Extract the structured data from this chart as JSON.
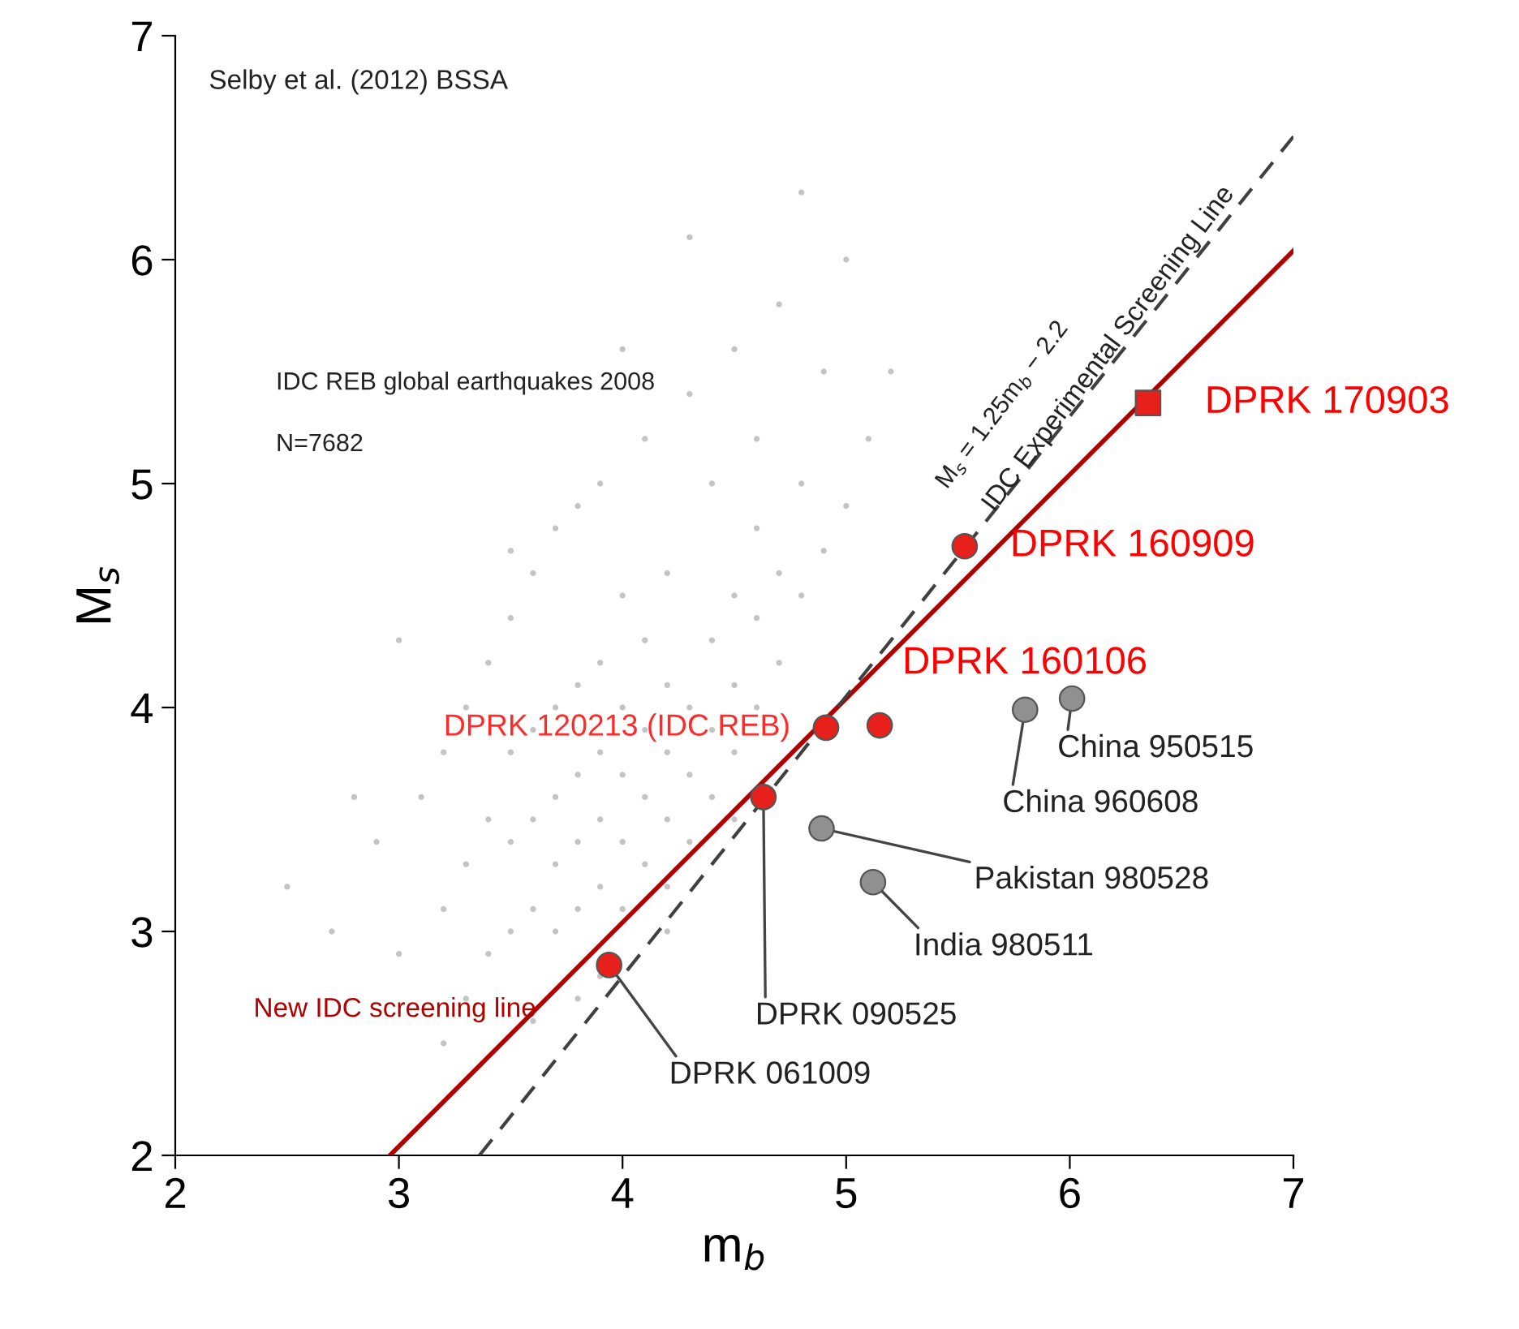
{
  "chart_data": {
    "type": "scatter",
    "xlabel": "m$_{b}$",
    "ylabel": "M$_{s}$",
    "xlim": [
      2,
      7
    ],
    "ylim": [
      2,
      7
    ],
    "xticks": [
      2,
      3,
      4,
      5,
      6,
      7
    ],
    "yticks": [
      2,
      3,
      4,
      5,
      6,
      7
    ],
    "grid": false,
    "series": [
      {
        "color": "#c4c4c4",
        "marker": "circle",
        "x": [
          2.5,
          2.7,
          2.9,
          3.0,
          3.1,
          3.2,
          3.2,
          3.3,
          3.3,
          3.4,
          3.4,
          3.4,
          3.5,
          3.5,
          3.5,
          3.5,
          3.6,
          3.6,
          3.6,
          3.6,
          3.7,
          3.7,
          3.7,
          3.7,
          3.7,
          3.8,
          3.8,
          3.8,
          3.8,
          3.8,
          3.9,
          3.9,
          3.9,
          3.9,
          3.9,
          4.0,
          4.0,
          4.0,
          4.0,
          4.0,
          4.1,
          4.1,
          4.1,
          4.1,
          4.1,
          4.2,
          4.2,
          4.2,
          4.2,
          4.2,
          4.3,
          4.3,
          4.3,
          4.3,
          4.4,
          4.4,
          4.4,
          4.4,
          4.5,
          4.5,
          4.5,
          4.5,
          4.6,
          4.6,
          4.6,
          4.7,
          4.7,
          4.7,
          4.8,
          4.8,
          4.9,
          4.9,
          5.0,
          5.0,
          5.1,
          3.3,
          3.6,
          3.9,
          4.2,
          4.5,
          3.0,
          2.8,
          3.5,
          4.0,
          4.3,
          4.6,
          4.8,
          5.2,
          3.2,
          3.8
        ],
        "values": [
          3.2,
          3.0,
          3.4,
          2.9,
          3.6,
          3.1,
          3.8,
          3.3,
          4.0,
          2.9,
          3.5,
          4.2,
          3.0,
          3.4,
          3.8,
          4.4,
          3.1,
          3.5,
          3.9,
          4.6,
          3.0,
          3.3,
          3.6,
          4.0,
          4.8,
          3.1,
          3.4,
          3.7,
          4.1,
          4.9,
          3.2,
          3.5,
          3.8,
          4.2,
          5.0,
          3.1,
          3.4,
          3.7,
          4.0,
          4.5,
          3.3,
          3.6,
          3.9,
          4.3,
          5.2,
          3.2,
          3.5,
          3.8,
          4.1,
          4.6,
          3.4,
          3.7,
          4.0,
          5.4,
          3.6,
          3.9,
          4.3,
          5.0,
          3.8,
          4.1,
          4.5,
          5.6,
          4.0,
          4.4,
          5.2,
          4.2,
          4.6,
          5.8,
          4.5,
          5.0,
          4.7,
          5.5,
          4.9,
          6.0,
          5.2,
          2.7,
          2.6,
          2.8,
          3.0,
          3.5,
          4.3,
          3.6,
          4.7,
          5.6,
          6.1,
          4.8,
          6.3,
          5.5,
          2.5,
          2.7
        ]
      },
      {
        "type": "line",
        "name": "New IDC screening line",
        "color": "#b00000",
        "line_style": "solid",
        "marker": "none",
        "x": [
          2.96,
          7.0
        ],
        "values": [
          2.0,
          6.04
        ]
      },
      {
        "type": "line",
        "name": "IDC Experimental Screening Line",
        "color": "#404040",
        "line_style": "dashed",
        "marker": "none",
        "x": [
          3.36,
          7.0
        ],
        "values": [
          2.0,
          6.55
        ]
      },
      {
        "color": "#909090",
        "marker": "circle",
        "x": [
          6.01,
          5.8,
          4.89,
          5.12
        ],
        "values": [
          4.04,
          3.99,
          3.46,
          3.22
        ]
      },
      {
        "color": "#e8201c",
        "marker": "circle",
        "x": [
          5.53,
          5.15,
          4.91,
          4.63,
          3.94
        ],
        "values": [
          4.72,
          3.92,
          3.91,
          3.6,
          2.85
        ]
      },
      {
        "color": "#e8201c",
        "marker": "square",
        "x": [
          6.35
        ],
        "values": [
          5.36
        ]
      }
    ],
    "annotations": [
      {
        "text": "DPRK 170903",
        "x": 6.35,
        "y": 5.36
      },
      {
        "text": "DPRK 160909",
        "x": 5.53,
        "y": 4.72
      },
      {
        "text": "DPRK 160106",
        "x": 5.15,
        "y": 3.92
      },
      {
        "text": "DPRK 120213 (IDC REB)",
        "x": 4.91,
        "y": 3.91
      },
      {
        "text": "DPRK 090525",
        "x": 4.63,
        "y": 3.6
      },
      {
        "text": "DPRK 061009",
        "x": 3.94,
        "y": 2.85
      },
      {
        "text": "China 950515",
        "x": 6.01,
        "y": 4.04
      },
      {
        "text": "China 960608",
        "x": 5.8,
        "y": 3.99
      },
      {
        "text": "Pakistan 980528",
        "x": 4.89,
        "y": 3.46
      },
      {
        "text": "India 980511",
        "x": 5.12,
        "y": 3.22
      },
      "Selby et al. (2012) BSSA",
      "IDC REB global earthquakes 2008",
      "N=7682",
      "M$_{s}$ = 1.25m$_{b}$ − 2.2"
    ]
  }
}
